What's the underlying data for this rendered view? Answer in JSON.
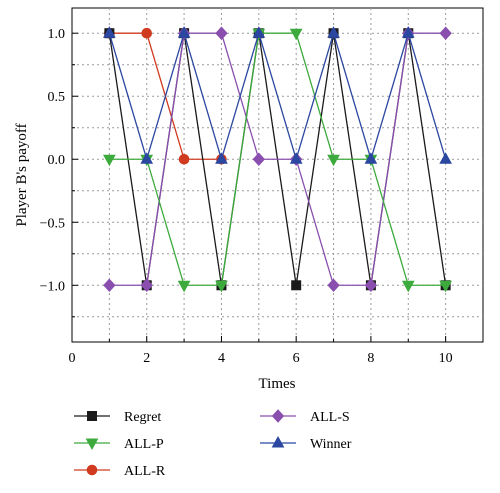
{
  "chart_data": {
    "type": "line",
    "title": "",
    "xlabel": "Times",
    "ylabel": "Player B's payoff",
    "xlim": [
      0,
      11
    ],
    "ylim": [
      -1.45,
      1.2
    ],
    "xticks": [
      0,
      2,
      4,
      6,
      8,
      10
    ],
    "yticks": [
      1.0,
      0.5,
      0.0,
      -0.5,
      -1.0
    ],
    "ytick_labels": [
      "1.0",
      "0.5",
      "0.0",
      "−0.5",
      "−1.0"
    ],
    "grid": true,
    "legend_position": "bottom",
    "x": [
      1,
      2,
      3,
      4,
      5,
      6,
      7,
      8,
      9,
      10
    ],
    "series": [
      {
        "name": "Regret",
        "color": "#1a1a1a",
        "marker": "square",
        "values": [
          1,
          -1,
          1,
          -1,
          1,
          -1,
          1,
          -1,
          1,
          -1
        ]
      },
      {
        "name": "ALL-P",
        "color": "#3daa3d",
        "marker": "triangle-down",
        "values": [
          0,
          0,
          -1,
          -1,
          1,
          1,
          0,
          0,
          -1,
          -1
        ]
      },
      {
        "name": "ALL-R",
        "color": "#d03a1e",
        "marker": "circle",
        "values": [
          1,
          1,
          0,
          0,
          null,
          null,
          null,
          null,
          null,
          null
        ]
      },
      {
        "name": "ALL-S",
        "color": "#8a4fae",
        "marker": "diamond",
        "values": [
          -1,
          -1,
          1,
          1,
          0,
          0,
          -1,
          -1,
          1,
          1
        ]
      },
      {
        "name": "Winner",
        "color": "#2b47a0",
        "marker": "triangle-up",
        "values": [
          1,
          0,
          1,
          0,
          1,
          0,
          1,
          0,
          1,
          0
        ]
      }
    ]
  }
}
